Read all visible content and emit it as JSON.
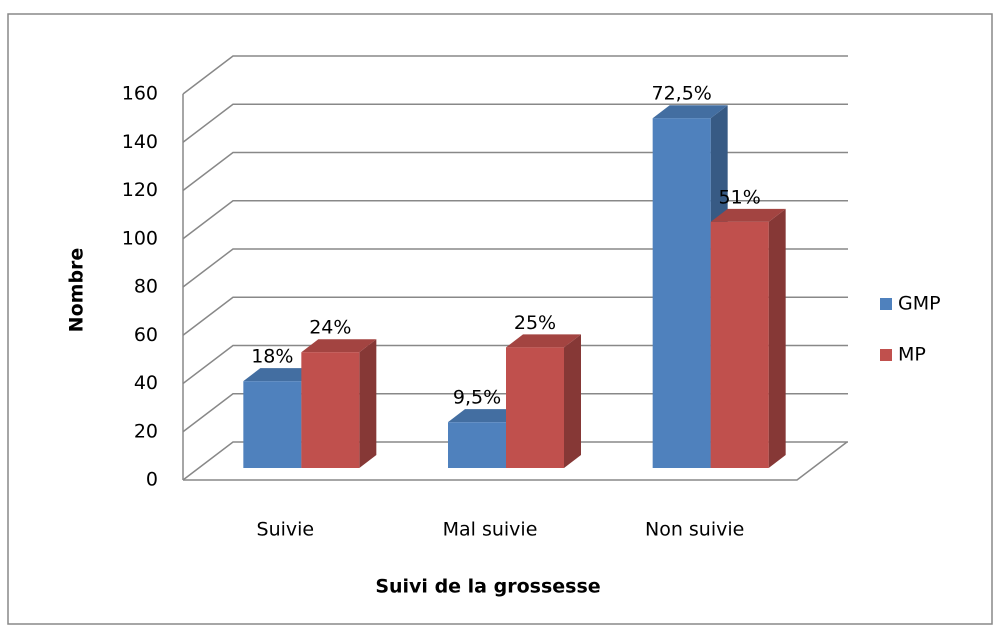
{
  "chart_data": {
    "type": "bar3d",
    "x_label": "Suivi de la grossesse",
    "y_label": "Nombre",
    "categories": [
      "Suivie",
      "Mal suivie",
      "Non suivie"
    ],
    "series": [
      {
        "name": "GMP",
        "color": "#4f81bd",
        "values": [
          36,
          19,
          145
        ],
        "point_labels": [
          "18%",
          "9,5%",
          "72,5%"
        ]
      },
      {
        "name": "MP",
        "color": "#c0504d",
        "values": [
          48,
          50,
          102
        ],
        "point_labels": [
          "24%",
          "25%",
          "51%"
        ]
      }
    ],
    "ylim": [
      0,
      160
    ],
    "yticks": [
      0,
      20,
      40,
      60,
      80,
      100,
      120,
      140,
      160
    ],
    "grid": true,
    "legend": "right"
  }
}
